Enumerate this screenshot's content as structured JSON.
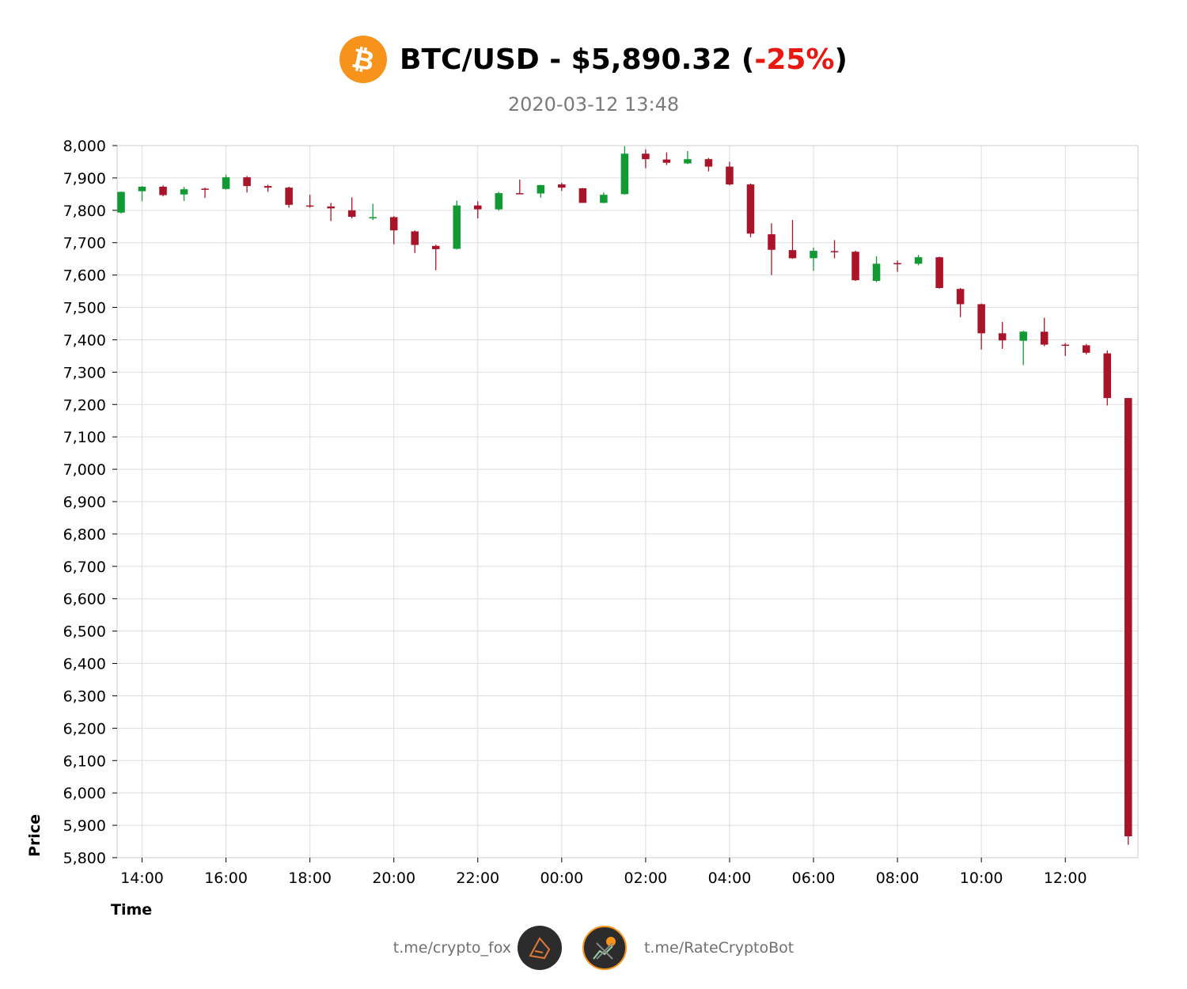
{
  "header": {
    "pair": "BTC/USD",
    "separator": " - ",
    "price": "$5,890.32",
    "open_paren": " (",
    "change": "-25%",
    "close_paren": ")",
    "subtitle": "2020-03-12 13:48",
    "change_color": "#e8170f",
    "logo_color": "#f7931a"
  },
  "footer": {
    "left_link": "t.me/crypto_fox",
    "right_link": "t.me/RateCryptoBot",
    "left_icon": "fox-icon",
    "right_icon": "bot-chart-icon"
  },
  "chart_data": {
    "type": "candlestick",
    "xlabel": "Time",
    "ylabel": "Price",
    "ylim": [
      5800,
      8000
    ],
    "y_ticks": [
      8000,
      7900,
      7800,
      7700,
      7600,
      7500,
      7400,
      7300,
      7200,
      7100,
      7000,
      6900,
      6800,
      6700,
      6600,
      6500,
      6400,
      6300,
      6200,
      6100,
      6000,
      5900,
      5800
    ],
    "y_tick_labels": [
      "8,000",
      "7,900",
      "7,800",
      "7,700",
      "7,600",
      "7,500",
      "7,400",
      "7,300",
      "7,200",
      "7,100",
      "7,000",
      "6,900",
      "6,800",
      "6,700",
      "6,600",
      "6,500",
      "6,400",
      "6,300",
      "6,200",
      "6,100",
      "6,000",
      "5,900",
      "5,800"
    ],
    "x_ticks": [
      "14:00",
      "16:00",
      "18:00",
      "20:00",
      "22:00",
      "00:00",
      "02:00",
      "04:00",
      "06:00",
      "08:00",
      "10:00",
      "12:00"
    ],
    "grid": true,
    "up_color": "#119933",
    "down_color": "#aa1428",
    "interval": "30m",
    "candles": [
      {
        "t": "13:30",
        "o": 7793,
        "h": 7858,
        "l": 7790,
        "c": 7857
      },
      {
        "t": "14:00",
        "o": 7859,
        "h": 7875,
        "l": 7828,
        "c": 7873
      },
      {
        "t": "14:30",
        "o": 7873,
        "h": 7877,
        "l": 7843,
        "c": 7847
      },
      {
        "t": "15:00",
        "o": 7849,
        "h": 7872,
        "l": 7829,
        "c": 7865
      },
      {
        "t": "15:30",
        "o": 7867,
        "h": 7870,
        "l": 7838,
        "c": 7865
      },
      {
        "t": "16:00",
        "o": 7866,
        "h": 7910,
        "l": 7864,
        "c": 7902
      },
      {
        "t": "16:30",
        "o": 7902,
        "h": 7906,
        "l": 7855,
        "c": 7875
      },
      {
        "t": "17:00",
        "o": 7875,
        "h": 7879,
        "l": 7857,
        "c": 7870
      },
      {
        "t": "17:30",
        "o": 7870,
        "h": 7873,
        "l": 7808,
        "c": 7817
      },
      {
        "t": "18:00",
        "o": 7815,
        "h": 7848,
        "l": 7808,
        "c": 7812
      },
      {
        "t": "18:30",
        "o": 7812,
        "h": 7823,
        "l": 7767,
        "c": 7806
      },
      {
        "t": "19:00",
        "o": 7800,
        "h": 7840,
        "l": 7775,
        "c": 7780
      },
      {
        "t": "19:30",
        "o": 7778,
        "h": 7820,
        "l": 7770,
        "c": 7779
      },
      {
        "t": "20:00",
        "o": 7779,
        "h": 7782,
        "l": 7695,
        "c": 7738
      },
      {
        "t": "20:30",
        "o": 7735,
        "h": 7738,
        "l": 7668,
        "c": 7693
      },
      {
        "t": "21:00",
        "o": 7690,
        "h": 7694,
        "l": 7615,
        "c": 7680
      },
      {
        "t": "21:30",
        "o": 7681,
        "h": 7830,
        "l": 7679,
        "c": 7815
      },
      {
        "t": "22:00",
        "o": 7815,
        "h": 7828,
        "l": 7775,
        "c": 7803
      },
      {
        "t": "22:30",
        "o": 7803,
        "h": 7857,
        "l": 7799,
        "c": 7853
      },
      {
        "t": "23:00",
        "o": 7853,
        "h": 7895,
        "l": 7850,
        "c": 7851
      },
      {
        "t": "23:30",
        "o": 7852,
        "h": 7879,
        "l": 7839,
        "c": 7878
      },
      {
        "t": "00:00",
        "o": 7880,
        "h": 7885,
        "l": 7860,
        "c": 7870
      },
      {
        "t": "00:30",
        "o": 7868,
        "h": 7869,
        "l": 7823,
        "c": 7823
      },
      {
        "t": "01:00",
        "o": 7823,
        "h": 7855,
        "l": 7822,
        "c": 7848
      },
      {
        "t": "01:30",
        "o": 7850,
        "h": 7998,
        "l": 7849,
        "c": 7975
      },
      {
        "t": "02:00",
        "o": 7975,
        "h": 7988,
        "l": 7930,
        "c": 7958
      },
      {
        "t": "02:30",
        "o": 7957,
        "h": 7979,
        "l": 7940,
        "c": 7947
      },
      {
        "t": "03:00",
        "o": 7945,
        "h": 7983,
        "l": 7943,
        "c": 7958
      },
      {
        "t": "03:30",
        "o": 7958,
        "h": 7962,
        "l": 7920,
        "c": 7935
      },
      {
        "t": "04:00",
        "o": 7935,
        "h": 7950,
        "l": 7877,
        "c": 7880
      },
      {
        "t": "04:30",
        "o": 7880,
        "h": 7883,
        "l": 7717,
        "c": 7728
      },
      {
        "t": "05:00",
        "o": 7726,
        "h": 7760,
        "l": 7600,
        "c": 7678
      },
      {
        "t": "05:30",
        "o": 7677,
        "h": 7770,
        "l": 7650,
        "c": 7652
      },
      {
        "t": "06:00",
        "o": 7652,
        "h": 7685,
        "l": 7613,
        "c": 7675
      },
      {
        "t": "06:30",
        "o": 7674,
        "h": 7708,
        "l": 7652,
        "c": 7672
      },
      {
        "t": "07:00",
        "o": 7672,
        "h": 7675,
        "l": 7582,
        "c": 7584
      },
      {
        "t": "07:30",
        "o": 7582,
        "h": 7658,
        "l": 7578,
        "c": 7635
      },
      {
        "t": "08:00",
        "o": 7637,
        "h": 7645,
        "l": 7610,
        "c": 7635
      },
      {
        "t": "08:30",
        "o": 7635,
        "h": 7662,
        "l": 7630,
        "c": 7655
      },
      {
        "t": "09:00",
        "o": 7655,
        "h": 7657,
        "l": 7558,
        "c": 7560
      },
      {
        "t": "09:30",
        "o": 7557,
        "h": 7560,
        "l": 7470,
        "c": 7510
      },
      {
        "t": "10:00",
        "o": 7510,
        "h": 7512,
        "l": 7370,
        "c": 7420
      },
      {
        "t": "10:30",
        "o": 7420,
        "h": 7455,
        "l": 7372,
        "c": 7398
      },
      {
        "t": "11:00",
        "o": 7397,
        "h": 7428,
        "l": 7322,
        "c": 7425
      },
      {
        "t": "11:30",
        "o": 7425,
        "h": 7468,
        "l": 7380,
        "c": 7385
      },
      {
        "t": "12:00",
        "o": 7385,
        "h": 7390,
        "l": 7350,
        "c": 7383
      },
      {
        "t": "12:30",
        "o": 7383,
        "h": 7387,
        "l": 7355,
        "c": 7360
      },
      {
        "t": "13:00",
        "o": 7358,
        "h": 7367,
        "l": 7197,
        "c": 7220
      },
      {
        "t": "13:30",
        "o": 7220,
        "h": 7220,
        "l": 5840,
        "c": 5866
      }
    ]
  }
}
